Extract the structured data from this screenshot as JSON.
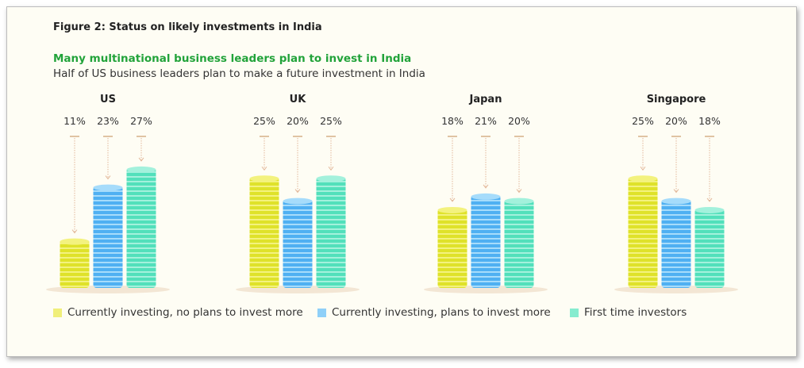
{
  "figure_title": "Figure 2: Status on likely investments in India",
  "headline": "Many multinational business leaders plan to invest in India",
  "subtitle": "Half of US business leaders plan to make a future investment in India",
  "chart_data": {
    "type": "bar",
    "categories": [
      "US",
      "UK",
      "Japan",
      "Singapore"
    ],
    "series": [
      {
        "name": "Currently investing, no plans to invest more",
        "values": [
          11,
          25,
          18,
          25
        ],
        "color": "#dfe22a",
        "labels": [
          "11%",
          "25%",
          "18%",
          "25%"
        ]
      },
      {
        "name": "Currently investing, plans to invest more",
        "values": [
          23,
          20,
          21,
          20
        ],
        "color": "#4fb0f2",
        "labels": [
          "23%",
          "20%",
          "21%",
          "20%"
        ]
      },
      {
        "name": "First time investors",
        "values": [
          27,
          25,
          20,
          18
        ],
        "color": "#52e0bb",
        "labels": [
          "27%",
          "25%",
          "20%",
          "18%"
        ]
      }
    ],
    "unit": "%",
    "legend": "bottom",
    "grid": false
  }
}
